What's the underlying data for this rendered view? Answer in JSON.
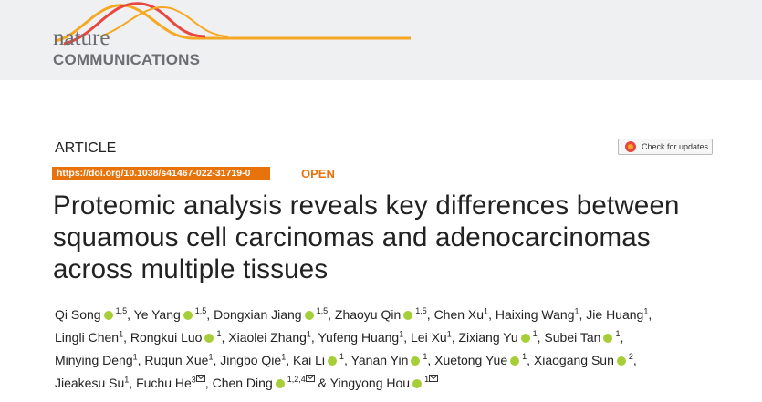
{
  "header": {
    "logo_top": "nature",
    "logo_bottom": "COMMUNICATIONS"
  },
  "article": {
    "kind": "ARTICLE",
    "check_updates": "Check for updates",
    "doi": "https://doi.org/10.1038/s41467-022-31719-0",
    "access": "OPEN",
    "title": "Proteomic analysis reveals key differences between squamous cell carcinomas and adenocarcinomas across multiple tissues",
    "separator": ",",
    "conjunction": "&",
    "authors": [
      {
        "name": "Qi Song",
        "orcid": true,
        "aff": "1,5"
      },
      {
        "name": "Ye Yang",
        "orcid": true,
        "aff": "1,5"
      },
      {
        "name": "Dongxian Jiang",
        "orcid": true,
        "aff": "1,5"
      },
      {
        "name": "Zhaoyu Qin",
        "orcid": true,
        "aff": "1,5"
      },
      {
        "name": "Chen Xu",
        "orcid": false,
        "aff": "1"
      },
      {
        "name": "Haixing Wang",
        "orcid": false,
        "aff": "1"
      },
      {
        "name": "Jie Huang",
        "orcid": false,
        "aff": "1"
      },
      {
        "name": "Lingli Chen",
        "orcid": false,
        "aff": "1"
      },
      {
        "name": "Rongkui Luo",
        "orcid": true,
        "aff": "1"
      },
      {
        "name": "Xiaolei Zhang",
        "orcid": false,
        "aff": "1"
      },
      {
        "name": "Yufeng Huang",
        "orcid": false,
        "aff": "1"
      },
      {
        "name": "Lei Xu",
        "orcid": false,
        "aff": "1"
      },
      {
        "name": "Zixiang Yu",
        "orcid": true,
        "aff": "1"
      },
      {
        "name": "Subei Tan",
        "orcid": true,
        "aff": "1"
      },
      {
        "name": "Minying Deng",
        "orcid": false,
        "aff": "1"
      },
      {
        "name": "Ruqun Xue",
        "orcid": false,
        "aff": "1"
      },
      {
        "name": "Jingbo Qie",
        "orcid": false,
        "aff": "1"
      },
      {
        "name": "Kai Li",
        "orcid": true,
        "aff": "1"
      },
      {
        "name": "Yanan Yin",
        "orcid": true,
        "aff": "1"
      },
      {
        "name": "Xuetong Yue",
        "orcid": true,
        "aff": "1"
      },
      {
        "name": "Xiaogang Sun",
        "orcid": true,
        "aff": "2"
      },
      {
        "name": "Jieakesu Su",
        "orcid": false,
        "aff": "1"
      },
      {
        "name": "Fuchu He",
        "orcid": false,
        "aff": "3",
        "corresponding": true
      },
      {
        "name": "Chen Ding",
        "orcid": true,
        "aff": "1,2,4",
        "corresponding": true
      },
      {
        "name": "Yingyong Hou",
        "orcid": true,
        "aff": "1",
        "corresponding": true
      }
    ]
  }
}
